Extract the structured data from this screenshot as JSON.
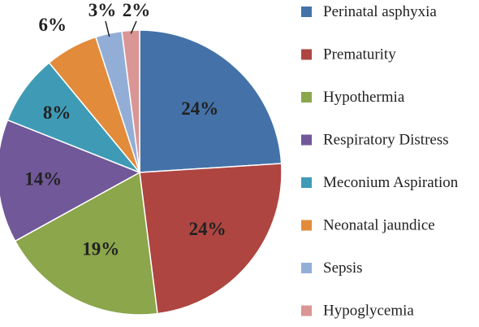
{
  "chart_data": {
    "type": "pie",
    "title": "",
    "legend_position": "right",
    "slices": [
      {
        "label": "Perinatal asphyxia",
        "value": 24,
        "display": "24%",
        "color": "#4472a8"
      },
      {
        "label": "Prematurity",
        "value": 24,
        "display": "24%",
        "color": "#ae4541"
      },
      {
        "label": "Hypothermia",
        "value": 19,
        "display": "19%",
        "color": "#8ba64b"
      },
      {
        "label": "Respiratory Distress",
        "value": 14,
        "display": "14%",
        "color": "#715898"
      },
      {
        "label": "Meconium Aspiration",
        "value": 8,
        "display": "8%",
        "color": "#3f9bb5"
      },
      {
        "label": "Neonatal jaundice",
        "value": 6,
        "display": "6%",
        "color": "#e28b3b"
      },
      {
        "label": "Sepsis",
        "value": 3,
        "display": "3%",
        "color": "#93aed6"
      },
      {
        "label": "Hypoglycemia",
        "value": 2,
        "display": "2%",
        "color": "#d99694"
      }
    ]
  }
}
